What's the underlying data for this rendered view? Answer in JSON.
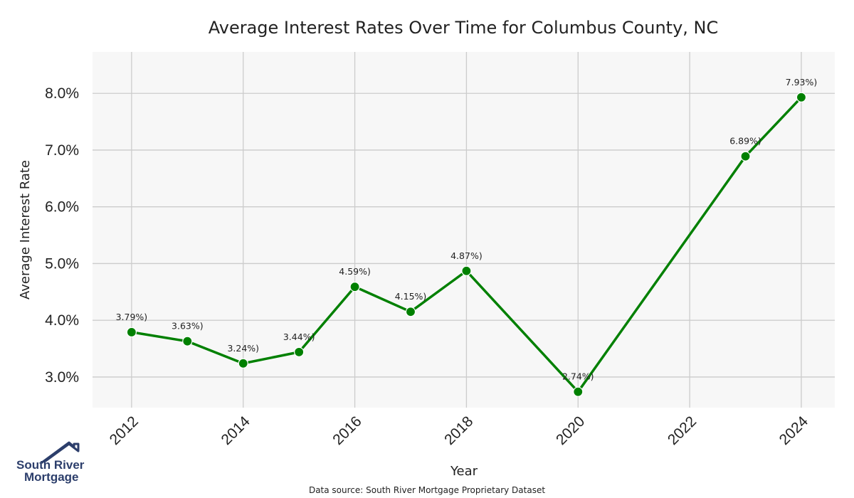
{
  "chart_data": {
    "type": "line",
    "title": "Average Interest Rates Over Time for Columbus County, NC",
    "xlabel": "Year",
    "ylabel": "Average Interest Rate",
    "x": [
      2012,
      2013,
      2014,
      2015,
      2016,
      2017,
      2018,
      2020,
      2023,
      2024
    ],
    "y": [
      3.79,
      3.63,
      3.24,
      3.44,
      4.59,
      4.15,
      4.87,
      2.74,
      6.89,
      7.93
    ],
    "point_labels": [
      "3.79%)",
      "3.63%)",
      "3.24%)",
      "3.44%)",
      "4.59%)",
      "4.15%)",
      "4.87%)",
      "2.74%)",
      "6.89%)",
      "7.93%)"
    ],
    "x_ticks": [
      2012,
      2014,
      2016,
      2018,
      2020,
      2022,
      2024
    ],
    "x_tick_labels": [
      "2012",
      "2014",
      "2016",
      "2018",
      "2020",
      "2022",
      "2024"
    ],
    "y_ticks": [
      3.0,
      4.0,
      5.0,
      6.0,
      7.0,
      8.0
    ],
    "y_tick_labels": [
      "3.0%",
      "4.0%",
      "5.0%",
      "6.0%",
      "7.0%",
      "8.0%"
    ],
    "xlim": [
      2011.3,
      2024.6
    ],
    "ylim": [
      2.46,
      8.73
    ],
    "grid": true,
    "line_color": "#008000",
    "plot_background": "#f7f7f7",
    "grid_color": "#cccccc"
  },
  "footer": {
    "source": "Data source: South River Mortgage Proprietary Dataset"
  },
  "logo": {
    "line1": "South River",
    "line2": "Mortgage",
    "color": "#2c3e6b"
  }
}
